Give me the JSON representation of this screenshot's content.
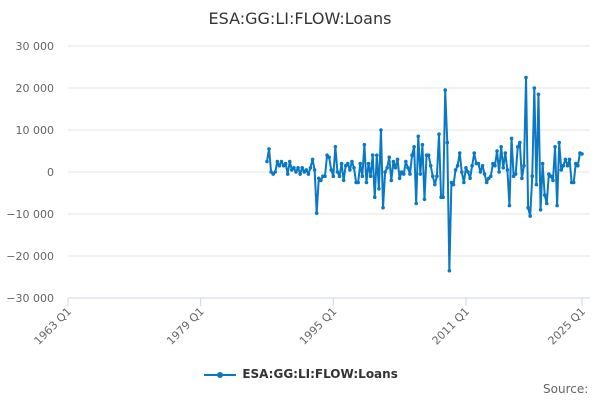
{
  "chart_data": {
    "type": "line",
    "title": "ESA:GG:LI:FLOW:Loans",
    "xlabel": "",
    "ylabel": "",
    "x_start": "1987 Q1",
    "frequency": "quarterly",
    "x_range": [
      "1963 Q1",
      "2025 Q1"
    ],
    "x_ticks": [
      "1963 Q1",
      "1979 Q1",
      "1995 Q1",
      "2011 Q1",
      "2025 Q1"
    ],
    "ylim": [
      -30000,
      30000
    ],
    "y_ticks": [
      30000,
      20000,
      10000,
      0,
      -10000,
      -20000,
      -30000
    ],
    "y_tick_labels": [
      "30 000",
      "20 000",
      "10 000",
      "0",
      "−10 000",
      "−20 000",
      "−30 000"
    ],
    "grid": "horizontal",
    "legend_position": "bottom",
    "series": [
      {
        "name": "ESA:GG:LI:FLOW:Loans",
        "color": "#0a78c2",
        "values": [
          2500,
          5500,
          0,
          -500,
          0,
          2500,
          1500,
          2500,
          1500,
          2000,
          -500,
          2500,
          500,
          1000,
          0,
          1000,
          -500,
          1000,
          0,
          500,
          -500,
          1000,
          3000,
          500,
          -9800,
          -1500,
          -2000,
          -1000,
          -1000,
          4000,
          3500,
          500,
          -1000,
          6000,
          0,
          -1000,
          2000,
          -2000,
          1500,
          2000,
          500,
          2500,
          1000,
          -2500,
          -2500,
          2000,
          -1000,
          6500,
          -2500,
          2000,
          -1000,
          4000,
          -6000,
          4000,
          -4000,
          10000,
          -8500,
          0,
          1000,
          3500,
          -2000,
          2500,
          1000,
          3000,
          -1500,
          0,
          -500,
          2500,
          1000,
          -500,
          4000,
          6000,
          -7500,
          8500,
          -500,
          6500,
          -6500,
          4000,
          4000,
          1500,
          -1000,
          -3000,
          -1000,
          9000,
          -6000,
          -6000,
          19500,
          7000,
          -23500,
          -2500,
          -3000,
          500,
          1500,
          4500,
          0,
          -2500,
          1000,
          0,
          -1500,
          1500,
          4500,
          2000,
          2000,
          0,
          1500,
          -500,
          -2500,
          -1500,
          -1000,
          2000,
          1500,
          5000,
          0,
          6000,
          1000,
          4500,
          500,
          -8000,
          8000,
          -1000,
          -500,
          6000,
          7000,
          -1500,
          1500,
          22500,
          -8500,
          -10500,
          -1000,
          20000,
          -3000,
          18500,
          -9000,
          2000,
          -5500,
          -7500,
          -500,
          -1000,
          -2000,
          6000,
          -8000,
          7000,
          500,
          1500,
          3000,
          1500,
          3000,
          -2500,
          -2500,
          2000,
          1500,
          4500,
          4300
        ]
      }
    ]
  },
  "source_label": "Source:"
}
